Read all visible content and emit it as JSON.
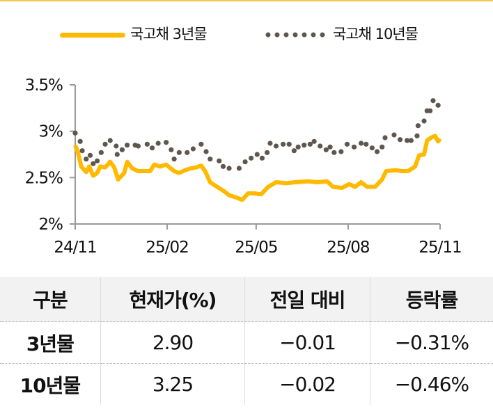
{
  "chart_data": {
    "type": "line",
    "ylim": [
      2.0,
      3.5
    ],
    "yticks": [
      "3.5%",
      "3%",
      "2.5%",
      "2%"
    ],
    "ytick_values": [
      3.5,
      3.0,
      2.5,
      2.0
    ],
    "xticks": [
      "24/11",
      "25/02",
      "25/05",
      "25/08",
      "25/11"
    ],
    "xtick_dates": [
      "2024-11-01",
      "2025-02-01",
      "2025-05-01",
      "2025-08-01",
      "2025-11-01"
    ],
    "grid": false,
    "legend_position": "top",
    "series": [
      {
        "name": "국고채 3년물",
        "style": "solid",
        "color": "#ffb900",
        "points": [
          [
            "2024-11-01",
            2.85
          ],
          [
            "2024-11-04",
            2.76
          ],
          [
            "2024-11-07",
            2.62
          ],
          [
            "2024-11-12",
            2.56
          ],
          [
            "2024-11-15",
            2.62
          ],
          [
            "2024-11-19",
            2.52
          ],
          [
            "2024-11-23",
            2.55
          ],
          [
            "2024-11-26",
            2.62
          ],
          [
            "2024-12-01",
            2.61
          ],
          [
            "2024-12-06",
            2.67
          ],
          [
            "2024-12-10",
            2.61
          ],
          [
            "2024-12-14",
            2.48
          ],
          [
            "2024-12-20",
            2.55
          ],
          [
            "2024-12-23",
            2.67
          ],
          [
            "2024-12-28",
            2.6
          ],
          [
            "2025-01-03",
            2.57
          ],
          [
            "2025-01-15",
            2.57
          ],
          [
            "2025-01-19",
            2.64
          ],
          [
            "2025-01-25",
            2.62
          ],
          [
            "2025-01-31",
            2.64
          ],
          [
            "2025-02-08",
            2.57
          ],
          [
            "2025-02-13",
            2.55
          ],
          [
            "2025-02-19",
            2.58
          ],
          [
            "2025-02-25",
            2.6
          ],
          [
            "2025-03-02",
            2.61
          ],
          [
            "2025-03-07",
            2.63
          ],
          [
            "2025-03-11",
            2.57
          ],
          [
            "2025-03-16",
            2.45
          ],
          [
            "2025-03-23",
            2.4
          ],
          [
            "2025-03-29",
            2.36
          ],
          [
            "2025-04-04",
            2.31
          ],
          [
            "2025-04-10",
            2.29
          ],
          [
            "2025-04-17",
            2.26
          ],
          [
            "2025-04-23",
            2.33
          ],
          [
            "2025-04-29",
            2.33
          ],
          [
            "2025-05-06",
            2.32
          ],
          [
            "2025-05-13",
            2.4
          ],
          [
            "2025-05-21",
            2.45
          ],
          [
            "2025-05-31",
            2.44
          ],
          [
            "2025-06-09",
            2.45
          ],
          [
            "2025-06-22",
            2.46
          ],
          [
            "2025-07-01",
            2.45
          ],
          [
            "2025-07-11",
            2.46
          ],
          [
            "2025-07-17",
            2.4
          ],
          [
            "2025-07-26",
            2.39
          ],
          [
            "2025-08-02",
            2.43
          ],
          [
            "2025-08-08",
            2.4
          ],
          [
            "2025-08-14",
            2.45
          ],
          [
            "2025-08-20",
            2.4
          ],
          [
            "2025-08-28",
            2.4
          ],
          [
            "2025-09-04",
            2.48
          ],
          [
            "2025-09-08",
            2.57
          ],
          [
            "2025-09-18",
            2.58
          ],
          [
            "2025-09-24",
            2.57
          ],
          [
            "2025-09-30",
            2.57
          ],
          [
            "2025-10-07",
            2.62
          ],
          [
            "2025-10-11",
            2.74
          ],
          [
            "2025-10-16",
            2.75
          ],
          [
            "2025-10-19",
            2.9
          ],
          [
            "2025-10-23",
            2.93
          ],
          [
            "2025-10-27",
            2.95
          ],
          [
            "2025-10-30",
            2.89
          ],
          [
            "2025-11-01",
            2.92
          ]
        ]
      },
      {
        "name": "국고채 10년물",
        "style": "dotted",
        "color": "#5f574f",
        "points": [
          [
            "2024-11-01",
            2.98
          ],
          [
            "2024-11-06",
            2.89
          ],
          [
            "2024-11-08",
            2.79
          ],
          [
            "2024-11-12",
            2.7
          ],
          [
            "2024-11-16",
            2.74
          ],
          [
            "2024-11-19",
            2.65
          ],
          [
            "2024-11-23",
            2.68
          ],
          [
            "2024-11-27",
            2.77
          ],
          [
            "2024-12-01",
            2.86
          ],
          [
            "2024-12-06",
            2.9
          ],
          [
            "2024-12-12",
            2.84
          ],
          [
            "2024-12-13",
            2.75
          ],
          [
            "2024-12-18",
            2.8
          ],
          [
            "2024-12-23",
            2.85
          ],
          [
            "2024-12-31",
            2.85
          ],
          [
            "2025-01-03",
            2.84
          ],
          [
            "2025-01-12",
            2.86
          ],
          [
            "2025-01-17",
            2.82
          ],
          [
            "2025-01-23",
            2.87
          ],
          [
            "2025-01-31",
            2.88
          ],
          [
            "2025-02-05",
            2.8
          ],
          [
            "2025-02-08",
            2.7
          ],
          [
            "2025-02-13",
            2.77
          ],
          [
            "2025-02-21",
            2.77
          ],
          [
            "2025-02-27",
            2.81
          ],
          [
            "2025-03-07",
            2.86
          ],
          [
            "2025-03-12",
            2.78
          ],
          [
            "2025-03-16",
            2.7
          ],
          [
            "2025-03-25",
            2.68
          ],
          [
            "2025-03-29",
            2.62
          ],
          [
            "2025-04-04",
            2.6
          ],
          [
            "2025-04-14",
            2.6
          ],
          [
            "2025-04-20",
            2.67
          ],
          [
            "2025-04-26",
            2.71
          ],
          [
            "2025-05-02",
            2.75
          ],
          [
            "2025-05-07",
            2.71
          ],
          [
            "2025-05-12",
            2.77
          ],
          [
            "2025-05-15",
            2.87
          ],
          [
            "2025-05-21",
            2.84
          ],
          [
            "2025-05-28",
            2.86
          ],
          [
            "2025-06-03",
            2.86
          ],
          [
            "2025-06-08",
            2.79
          ],
          [
            "2025-06-12",
            2.83
          ],
          [
            "2025-06-18",
            2.85
          ],
          [
            "2025-06-24",
            2.86
          ],
          [
            "2025-06-28",
            2.89
          ],
          [
            "2025-07-04",
            2.84
          ],
          [
            "2025-07-10",
            2.8
          ],
          [
            "2025-07-14",
            2.83
          ],
          [
            "2025-07-18",
            2.77
          ],
          [
            "2025-07-25",
            2.78
          ],
          [
            "2025-07-31",
            2.86
          ],
          [
            "2025-08-07",
            2.83
          ],
          [
            "2025-08-14",
            2.87
          ],
          [
            "2025-08-19",
            2.86
          ],
          [
            "2025-08-25",
            2.82
          ],
          [
            "2025-08-30",
            2.78
          ],
          [
            "2025-09-04",
            2.83
          ],
          [
            "2025-09-07",
            2.93
          ],
          [
            "2025-09-16",
            2.96
          ],
          [
            "2025-09-22",
            2.91
          ],
          [
            "2025-09-29",
            2.9
          ],
          [
            "2025-10-03",
            2.9
          ],
          [
            "2025-10-09",
            2.95
          ],
          [
            "2025-10-10",
            3.06
          ],
          [
            "2025-10-16",
            3.11
          ],
          [
            "2025-10-19",
            3.22
          ],
          [
            "2025-10-22",
            3.22
          ],
          [
            "2025-10-25",
            3.33
          ],
          [
            "2025-10-30",
            3.28
          ]
        ]
      }
    ]
  },
  "legend": {
    "series1": "국고채 3년물",
    "series2": "국고채 10년물"
  },
  "table": {
    "headers": [
      "구분",
      "현재가(%)",
      "전일 대비",
      "등락률"
    ],
    "rows": [
      [
        "3년물",
        "2.90",
        "−0.01",
        "−0.31%"
      ],
      [
        "10년물",
        "3.25",
        "−0.02",
        "−0.46%"
      ]
    ]
  }
}
